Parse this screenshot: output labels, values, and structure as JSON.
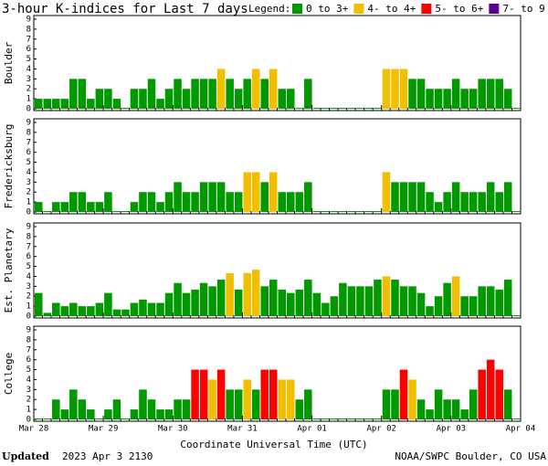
{
  "header": {
    "title": "3-hour K-indices for Last 7 days",
    "legend_title": "Legend:",
    "legend": [
      {
        "label": "0 to 3+",
        "color": "#009900"
      },
      {
        "label": "4- to 4+",
        "color": "#f0c000"
      },
      {
        "label": "5- to 6+",
        "color": "#ff0000"
      },
      {
        "label": "7- to 9",
        "color": "#5a0099"
      }
    ]
  },
  "xtick_labels": [
    "Mar 28",
    "Mar 29",
    "Mar 30",
    "Mar 31",
    "Apr 01",
    "Apr 02",
    "Apr 03",
    "Apr 04"
  ],
  "xlabel": "Coordinate Universal Time (UTC)",
  "footer": {
    "updated_label": "Updated",
    "timestamp": "2023 Apr  3 2130",
    "source": "NOAA/SWPC Boulder, CO USA"
  },
  "chart_data": [
    {
      "type": "bar",
      "ylabel": "Boulder",
      "ylim": [
        0,
        9
      ],
      "yticks": [
        0,
        1,
        2,
        3,
        4,
        5,
        6,
        7,
        8,
        9
      ],
      "values": [
        1,
        1,
        1,
        1,
        3,
        3,
        1,
        2,
        2,
        1,
        0,
        2,
        2,
        3,
        1,
        2,
        3,
        2,
        3,
        3,
        3,
        4,
        3,
        2,
        3,
        4,
        3,
        4,
        2,
        2,
        0,
        3,
        0,
        0,
        0,
        0,
        0,
        0,
        0,
        0,
        4,
        4,
        4,
        3,
        3,
        2,
        2,
        2,
        3,
        2,
        2,
        3,
        3,
        3,
        2,
        0
      ]
    },
    {
      "type": "bar",
      "ylabel": "Fredericksburg",
      "ylim": [
        0,
        9
      ],
      "yticks": [
        0,
        1,
        2,
        3,
        4,
        5,
        6,
        7,
        8,
        9
      ],
      "values": [
        1,
        0,
        1,
        1,
        2,
        2,
        1,
        1,
        2,
        0,
        0,
        1,
        2,
        2,
        1,
        2,
        3,
        2,
        2,
        3,
        3,
        3,
        2,
        2,
        4,
        4,
        3,
        4,
        2,
        2,
        2,
        3,
        0,
        0,
        0,
        0,
        0,
        0,
        0,
        0,
        4,
        3,
        3,
        3,
        3,
        2,
        1,
        2,
        3,
        2,
        2,
        2,
        3,
        2,
        3,
        0
      ]
    },
    {
      "type": "bar",
      "ylabel": "Est. Planetary",
      "ylim": [
        0,
        9
      ],
      "yticks": [
        0,
        1,
        2,
        3,
        4,
        5,
        6,
        7,
        8,
        9
      ],
      "values": [
        2.33,
        0.33,
        1.33,
        1,
        1.33,
        1,
        1,
        1.33,
        2.33,
        0.67,
        0.67,
        1.33,
        1.67,
        1.33,
        1.33,
        2.33,
        3.33,
        2.33,
        2.67,
        3.33,
        3,
        3.67,
        4.33,
        2.67,
        4.33,
        4.67,
        3,
        3.67,
        2.67,
        2.33,
        2.67,
        3.67,
        2.33,
        1.33,
        2,
        3.33,
        3,
        3,
        3,
        3.67,
        4,
        3.67,
        3,
        3,
        2.33,
        1,
        2,
        3.33,
        4,
        2,
        2,
        3,
        3,
        2.67,
        3.67,
        0
      ]
    },
    {
      "type": "bar",
      "ylabel": "College",
      "ylim": [
        0,
        9
      ],
      "yticks": [
        0,
        1,
        2,
        3,
        4,
        5,
        6,
        7,
        8,
        9
      ],
      "values": [
        0,
        0,
        2,
        1,
        3,
        2,
        1,
        0,
        1,
        2,
        0,
        1,
        3,
        2,
        1,
        1,
        2,
        2,
        5,
        5,
        4,
        5,
        3,
        3,
        4,
        3,
        5,
        5,
        4,
        4,
        2,
        3,
        0,
        0,
        0,
        0,
        0,
        0,
        0,
        0,
        3,
        3,
        5,
        4,
        2,
        1,
        3,
        2,
        2,
        1,
        3,
        5,
        6,
        5,
        3,
        0
      ]
    }
  ]
}
